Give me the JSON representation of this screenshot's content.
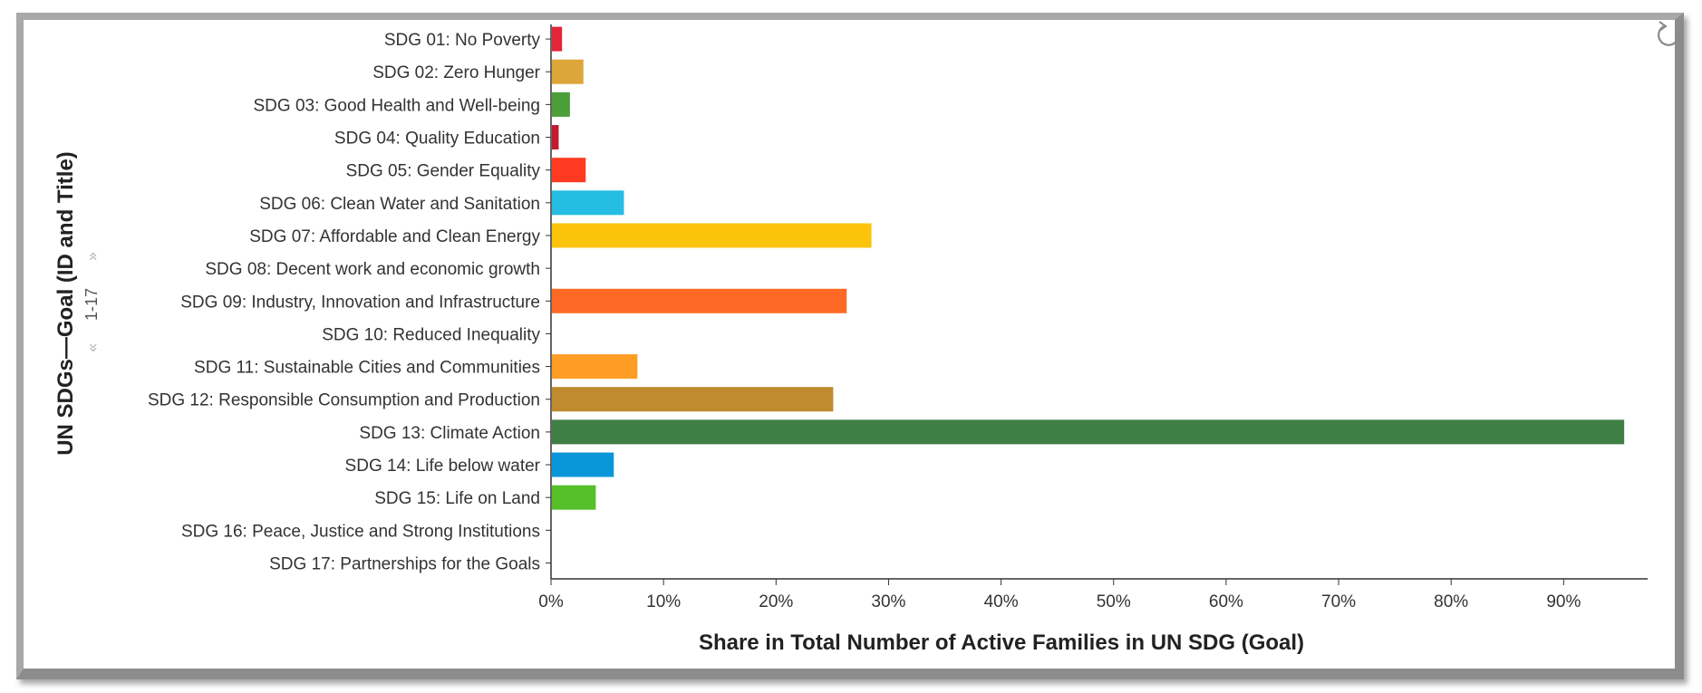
{
  "chart_data": {
    "type": "bar",
    "orientation": "horizontal",
    "title": "",
    "xlabel": "Share in Total Number of Active Families in UN SDG (Goal)",
    "ylabel": "UN SDGs—Goal (ID and Title)",
    "xlim": [
      0,
      100
    ],
    "x_ticks": [
      "0%",
      "10%",
      "20%",
      "30%",
      "40%",
      "50%",
      "60%",
      "70%",
      "80%",
      "90%"
    ],
    "x_tick_values": [
      0,
      10,
      20,
      30,
      40,
      50,
      60,
      70,
      80,
      90
    ],
    "grid": false,
    "categories": [
      "SDG 01: No Poverty",
      "SDG 02: Zero Hunger",
      "SDG 03: Good Health and Well-being",
      "SDG 04: Quality Education",
      "SDG 05: Gender Equality",
      "SDG 06: Clean Water and Sanitation",
      "SDG 07: Affordable and Clean Energy",
      "SDG 08: Decent work and economic growth",
      "SDG 09: Industry, Innovation and Infrastructure",
      "SDG 10: Reduced Inequality",
      "SDG 11: Sustainable Cities and Communities",
      "SDG 12: Responsible Consumption and Production",
      "SDG 13: Climate Action",
      "SDG 14: Life below water",
      "SDG 15: Life on Land",
      "SDG 16: Peace, Justice and Strong Institutions",
      "SDG 17: Partnerships for the Goals"
    ],
    "values": [
      0.9,
      2.8,
      1.6,
      0.6,
      3.0,
      6.4,
      28.4,
      0,
      26.2,
      0,
      7.6,
      25.0,
      95.3,
      5.5,
      3.9,
      0,
      0
    ],
    "colors": [
      "#e5243b",
      "#dda63a",
      "#4c9f38",
      "#c5192d",
      "#ff3a21",
      "#26bde2",
      "#fcc30b",
      "#a21942",
      "#fd6925",
      "#dd1367",
      "#fd9d24",
      "#bf8b2e",
      "#3f7e44",
      "#0a97d9",
      "#56c02b",
      "#00689d",
      "#19486a"
    ]
  },
  "pager": {
    "range_label": "1-17",
    "up_icon": "double-chevron-up-icon",
    "down_icon": "double-chevron-down-icon"
  },
  "toolbar": {
    "reset_icon": "reset-icon"
  }
}
